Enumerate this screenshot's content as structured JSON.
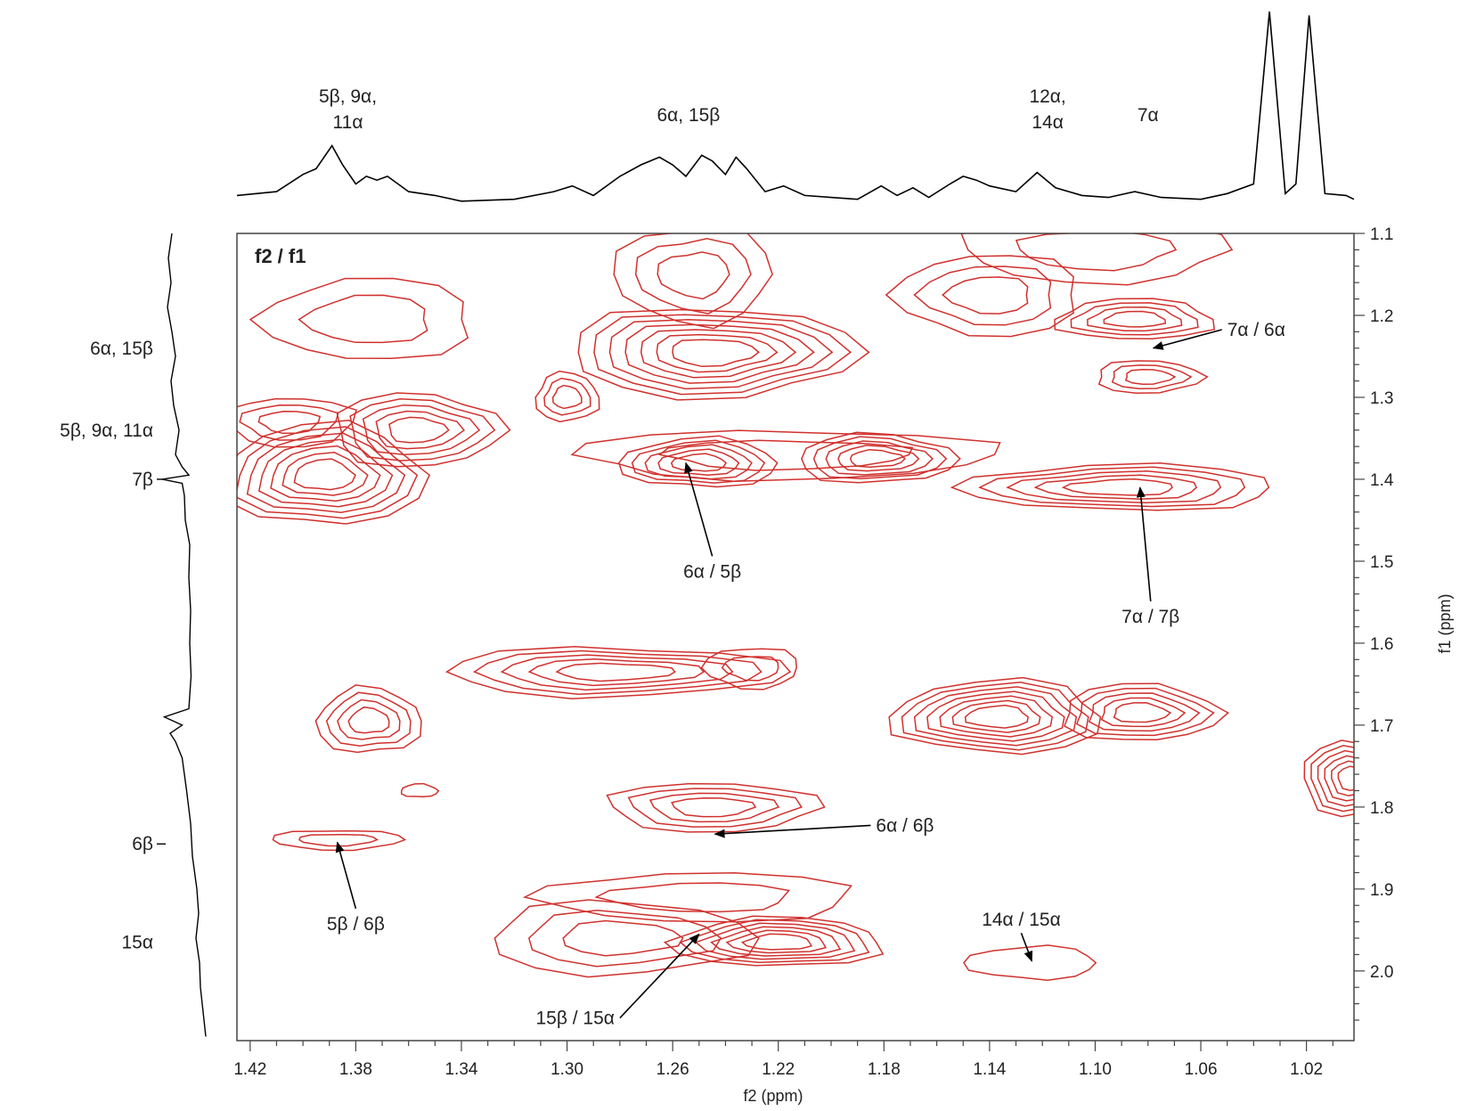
{
  "chart_data": {
    "type": "contour",
    "panel_label": "f2 / f1",
    "xlabel": "f2 (ppm)",
    "ylabel": "f1 (ppm)",
    "x_reversed": true,
    "xlim": [
      1.425,
      1.002
    ],
    "ylim": [
      1.1,
      2.085
    ],
    "x_ticks": [
      1.42,
      1.38,
      1.34,
      1.3,
      1.26,
      1.22,
      1.18,
      1.14,
      1.1,
      1.06,
      1.02
    ],
    "y_ticks": [
      1.1,
      1.2,
      1.3,
      1.4,
      1.5,
      1.6,
      1.7,
      1.8,
      1.9,
      2.0
    ],
    "contour_color": "#d0312d",
    "top_projection": {
      "points": [
        [
          1.425,
          0.04
        ],
        [
          1.41,
          0.06
        ],
        [
          1.4,
          0.15
        ],
        [
          1.395,
          0.18
        ],
        [
          1.389,
          0.3
        ],
        [
          1.385,
          0.2
        ],
        [
          1.38,
          0.1
        ],
        [
          1.376,
          0.14
        ],
        [
          1.372,
          0.12
        ],
        [
          1.368,
          0.14
        ],
        [
          1.36,
          0.06
        ],
        [
          1.35,
          0.04
        ],
        [
          1.34,
          0.01
        ],
        [
          1.32,
          0.02
        ],
        [
          1.305,
          0.06
        ],
        [
          1.298,
          0.09
        ],
        [
          1.29,
          0.04
        ],
        [
          1.28,
          0.14
        ],
        [
          1.272,
          0.2
        ],
        [
          1.265,
          0.24
        ],
        [
          1.26,
          0.2
        ],
        [
          1.255,
          0.14
        ],
        [
          1.249,
          0.25
        ],
        [
          1.245,
          0.22
        ],
        [
          1.24,
          0.15
        ],
        [
          1.236,
          0.24
        ],
        [
          1.232,
          0.18
        ],
        [
          1.225,
          0.06
        ],
        [
          1.218,
          0.09
        ],
        [
          1.21,
          0.04
        ],
        [
          1.2,
          0.03
        ],
        [
          1.19,
          0.02
        ],
        [
          1.181,
          0.09
        ],
        [
          1.175,
          0.04
        ],
        [
          1.169,
          0.08
        ],
        [
          1.163,
          0.03
        ],
        [
          1.155,
          0.1
        ],
        [
          1.15,
          0.14
        ],
        [
          1.145,
          0.12
        ],
        [
          1.14,
          0.09
        ],
        [
          1.13,
          0.06
        ],
        [
          1.122,
          0.16
        ],
        [
          1.115,
          0.08
        ],
        [
          1.105,
          0.04
        ],
        [
          1.095,
          0.03
        ],
        [
          1.085,
          0.06
        ],
        [
          1.075,
          0.03
        ],
        [
          1.06,
          0.02
        ],
        [
          1.05,
          0.05
        ],
        [
          1.04,
          0.1
        ],
        [
          1.034,
          1.0
        ],
        [
          1.028,
          0.05
        ],
        [
          1.024,
          0.1
        ],
        [
          1.019,
          0.98
        ],
        [
          1.013,
          0.05
        ],
        [
          1.005,
          0.04
        ],
        [
          1.002,
          0.02
        ]
      ],
      "peak_labels": [
        {
          "lines": [
            "5β, 9α,",
            "11α"
          ],
          "x": 1.383
        },
        {
          "lines": [
            "6α, 15β"
          ],
          "x": 1.254
        },
        {
          "lines": [
            "12α,",
            "14α"
          ],
          "x": 1.118
        },
        {
          "lines": [
            "7α"
          ],
          "x": 1.08
        }
      ]
    },
    "left_projection": {
      "points": [
        [
          1.1,
          0.78
        ],
        [
          1.13,
          0.86
        ],
        [
          1.16,
          0.8
        ],
        [
          1.19,
          0.88
        ],
        [
          1.22,
          0.78
        ],
        [
          1.25,
          0.7
        ],
        [
          1.28,
          0.8
        ],
        [
          1.31,
          0.74
        ],
        [
          1.34,
          0.62
        ],
        [
          1.37,
          0.7
        ],
        [
          1.385,
          0.55
        ],
        [
          1.395,
          0.4
        ],
        [
          1.4,
          1.0
        ],
        [
          1.405,
          0.55
        ],
        [
          1.42,
          0.5
        ],
        [
          1.45,
          0.48
        ],
        [
          1.48,
          0.38
        ],
        [
          1.52,
          0.4
        ],
        [
          1.56,
          0.36
        ],
        [
          1.6,
          0.38
        ],
        [
          1.64,
          0.35
        ],
        [
          1.68,
          0.4
        ],
        [
          1.69,
          0.95
        ],
        [
          1.7,
          0.55
        ],
        [
          1.71,
          0.82
        ],
        [
          1.72,
          0.7
        ],
        [
          1.74,
          0.55
        ],
        [
          1.78,
          0.45
        ],
        [
          1.82,
          0.36
        ],
        [
          1.86,
          0.32
        ],
        [
          1.9,
          0.22
        ],
        [
          1.93,
          0.18
        ],
        [
          1.96,
          0.24
        ],
        [
          1.99,
          0.16
        ],
        [
          2.02,
          0.14
        ],
        [
          2.04,
          0.1
        ],
        [
          2.06,
          0.06
        ],
        [
          2.08,
          0.02
        ]
      ],
      "peak_labels": [
        {
          "text": "6α, 15β",
          "y": 1.24
        },
        {
          "text": "5β, 9α, 11α",
          "y": 1.34
        },
        {
          "text": "7β",
          "y": 1.4
        },
        {
          "text": "6β",
          "y": 1.845
        },
        {
          "text": "15α",
          "y": 1.965
        }
      ]
    },
    "peaks": [
      {
        "x": 1.392,
        "y": 1.395,
        "rx": 0.038,
        "ry": 0.062,
        "levels": 7
      },
      {
        "x": 1.357,
        "y": 1.34,
        "rx": 0.032,
        "ry": 0.045,
        "levels": 5
      },
      {
        "x": 1.405,
        "y": 1.33,
        "rx": 0.025,
        "ry": 0.03,
        "levels": 3
      },
      {
        "x": 1.375,
        "y": 1.205,
        "rx": 0.04,
        "ry": 0.05,
        "levels": 2
      },
      {
        "x": 1.3,
        "y": 1.3,
        "rx": 0.012,
        "ry": 0.03,
        "levels": 3
      },
      {
        "x": 1.245,
        "y": 1.245,
        "rx": 0.055,
        "ry": 0.055,
        "levels": 7
      },
      {
        "x": 1.252,
        "y": 1.15,
        "rx": 0.03,
        "ry": 0.06,
        "levels": 3
      },
      {
        "x": 1.25,
        "y": 1.38,
        "rx": 0.03,
        "ry": 0.03,
        "levels": 5
      },
      {
        "x": 1.183,
        "y": 1.375,
        "rx": 0.03,
        "ry": 0.03,
        "levels": 5
      },
      {
        "x": 1.217,
        "y": 1.37,
        "rx": 0.08,
        "ry": 0.03,
        "levels": 2
      },
      {
        "x": 1.14,
        "y": 1.175,
        "rx": 0.035,
        "ry": 0.05,
        "levels": 3
      },
      {
        "x": 1.085,
        "y": 1.205,
        "rx": 0.03,
        "ry": 0.025,
        "levels": 4
      },
      {
        "x": 1.08,
        "y": 1.275,
        "rx": 0.02,
        "ry": 0.02,
        "levels": 3
      },
      {
        "x": 1.1,
        "y": 1.12,
        "rx": 0.05,
        "ry": 0.04,
        "levels": 2
      },
      {
        "x": 1.09,
        "y": 1.41,
        "rx": 0.06,
        "ry": 0.028,
        "levels": 5
      },
      {
        "x": 1.375,
        "y": 1.695,
        "rx": 0.02,
        "ry": 0.04,
        "levels": 4
      },
      {
        "x": 1.282,
        "y": 1.635,
        "rx": 0.065,
        "ry": 0.03,
        "levels": 5
      },
      {
        "x": 1.23,
        "y": 1.63,
        "rx": 0.018,
        "ry": 0.025,
        "levels": 2
      },
      {
        "x": 1.137,
        "y": 1.69,
        "rx": 0.04,
        "ry": 0.045,
        "levels": 7
      },
      {
        "x": 1.083,
        "y": 1.685,
        "rx": 0.03,
        "ry": 0.035,
        "levels": 5
      },
      {
        "x": 1.245,
        "y": 1.8,
        "rx": 0.04,
        "ry": 0.03,
        "levels": 4
      },
      {
        "x": 1.25,
        "y": 1.91,
        "rx": 0.06,
        "ry": 0.03,
        "levels": 2
      },
      {
        "x": 1.22,
        "y": 1.965,
        "rx": 0.04,
        "ry": 0.03,
        "levels": 6
      },
      {
        "x": 1.28,
        "y": 1.96,
        "rx": 0.05,
        "ry": 0.045,
        "levels": 3
      },
      {
        "x": 1.387,
        "y": 1.84,
        "rx": 0.025,
        "ry": 0.012,
        "levels": 2
      },
      {
        "x": 1.124,
        "y": 1.99,
        "rx": 0.025,
        "ry": 0.02,
        "levels": 1
      },
      {
        "x": 1.356,
        "y": 1.78,
        "rx": 0.007,
        "ry": 0.008,
        "levels": 1
      },
      {
        "x": 1.002,
        "y": 1.765,
        "rx": 0.02,
        "ry": 0.045,
        "levels": 6
      }
    ],
    "annotations": [
      {
        "text": "7α / 6α",
        "tx": 1.05,
        "ty": 1.225,
        "ax": 1.078,
        "ay": 1.24
      },
      {
        "text": "6α / 5β",
        "tx": 1.245,
        "ty": 1.52,
        "ax": 1.255,
        "ay": 1.38
      },
      {
        "text": "7α / 7β",
        "tx": 1.079,
        "ty": 1.575,
        "ax": 1.083,
        "ay": 1.41
      },
      {
        "text": "6α / 6β",
        "tx": 1.183,
        "ty": 1.83,
        "ax": 1.244,
        "ay": 1.833
      },
      {
        "text": "5β / 6β",
        "tx": 1.38,
        "ty": 1.95,
        "ax": 1.387,
        "ay": 1.843
      },
      {
        "text": "15β / 15α",
        "tx": 1.282,
        "ty": 2.065,
        "ax": 1.25,
        "ay": 1.955
      },
      {
        "text": "14α /  15α",
        "tx": 1.128,
        "ty": 1.945,
        "ax": 1.124,
        "ay": 1.988
      }
    ]
  }
}
